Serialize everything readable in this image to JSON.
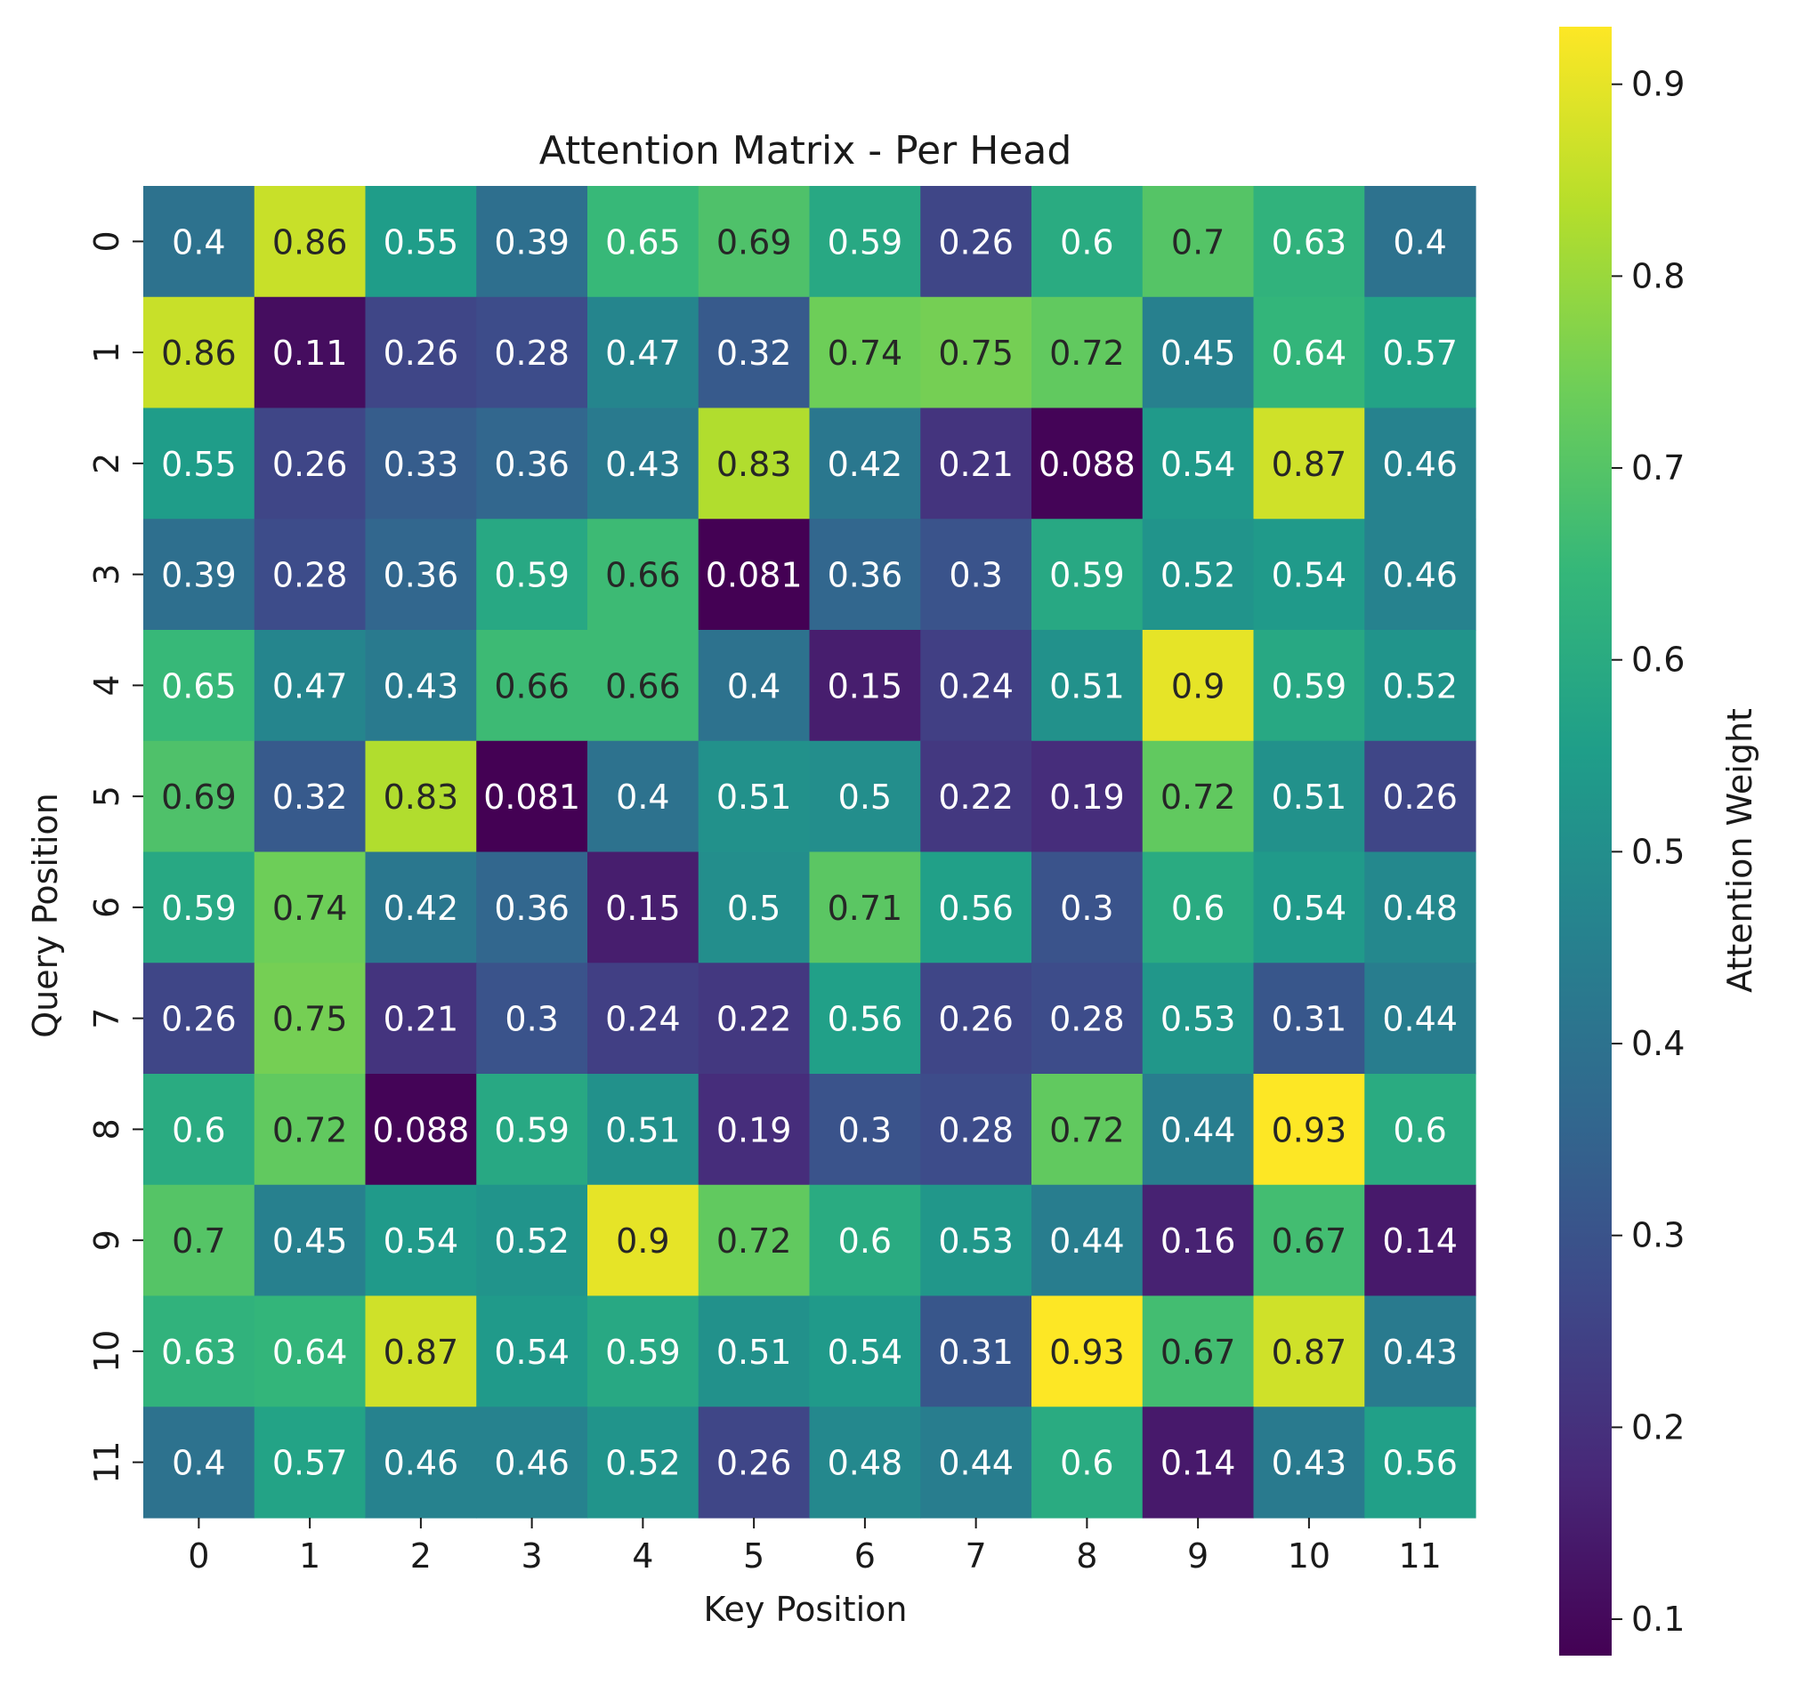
{
  "chart_data": {
    "type": "heatmap",
    "title": "Attention Matrix - Per Head",
    "xlabel": "Key Position",
    "ylabel": "Query Position",
    "x_categories": [
      "0",
      "1",
      "2",
      "3",
      "4",
      "5",
      "6",
      "7",
      "8",
      "9",
      "10",
      "11"
    ],
    "y_categories": [
      "0",
      "1",
      "2",
      "3",
      "4",
      "5",
      "6",
      "7",
      "8",
      "9",
      "10",
      "11"
    ],
    "values": [
      [
        0.4,
        0.86,
        0.55,
        0.39,
        0.65,
        0.69,
        0.59,
        0.26,
        0.6,
        0.7,
        0.63,
        0.4
      ],
      [
        0.86,
        0.11,
        0.26,
        0.28,
        0.47,
        0.32,
        0.74,
        0.75,
        0.72,
        0.45,
        0.64,
        0.57
      ],
      [
        0.55,
        0.26,
        0.33,
        0.36,
        0.43,
        0.83,
        0.42,
        0.21,
        0.088,
        0.54,
        0.87,
        0.46
      ],
      [
        0.39,
        0.28,
        0.36,
        0.59,
        0.66,
        0.081,
        0.36,
        0.3,
        0.59,
        0.52,
        0.54,
        0.46
      ],
      [
        0.65,
        0.47,
        0.43,
        0.66,
        0.66,
        0.4,
        0.15,
        0.24,
        0.51,
        0.9,
        0.59,
        0.52
      ],
      [
        0.69,
        0.32,
        0.83,
        0.081,
        0.4,
        0.51,
        0.5,
        0.22,
        0.19,
        0.72,
        0.51,
        0.26
      ],
      [
        0.59,
        0.74,
        0.42,
        0.36,
        0.15,
        0.5,
        0.71,
        0.56,
        0.3,
        0.6,
        0.54,
        0.48
      ],
      [
        0.26,
        0.75,
        0.21,
        0.3,
        0.24,
        0.22,
        0.56,
        0.26,
        0.28,
        0.53,
        0.31,
        0.44
      ],
      [
        0.6,
        0.72,
        0.088,
        0.59,
        0.51,
        0.19,
        0.3,
        0.28,
        0.72,
        0.44,
        0.93,
        0.6
      ],
      [
        0.7,
        0.45,
        0.54,
        0.52,
        0.9,
        0.72,
        0.6,
        0.53,
        0.44,
        0.16,
        0.67,
        0.14
      ],
      [
        0.63,
        0.64,
        0.87,
        0.54,
        0.59,
        0.51,
        0.54,
        0.31,
        0.93,
        0.67,
        0.87,
        0.43
      ],
      [
        0.4,
        0.57,
        0.46,
        0.46,
        0.52,
        0.26,
        0.48,
        0.44,
        0.6,
        0.14,
        0.43,
        0.56
      ]
    ],
    "value_labels": [
      [
        "0.4",
        "0.86",
        "0.55",
        "0.39",
        "0.65",
        "0.69",
        "0.59",
        "0.26",
        "0.6",
        "0.7",
        "0.63",
        "0.4"
      ],
      [
        "0.86",
        "0.11",
        "0.26",
        "0.28",
        "0.47",
        "0.32",
        "0.74",
        "0.75",
        "0.72",
        "0.45",
        "0.64",
        "0.57"
      ],
      [
        "0.55",
        "0.26",
        "0.33",
        "0.36",
        "0.43",
        "0.83",
        "0.42",
        "0.21",
        "0.088",
        "0.54",
        "0.87",
        "0.46"
      ],
      [
        "0.39",
        "0.28",
        "0.36",
        "0.59",
        "0.66",
        "0.081",
        "0.36",
        "0.3",
        "0.59",
        "0.52",
        "0.54",
        "0.46"
      ],
      [
        "0.65",
        "0.47",
        "0.43",
        "0.66",
        "0.66",
        "0.4",
        "0.15",
        "0.24",
        "0.51",
        "0.9",
        "0.59",
        "0.52"
      ],
      [
        "0.69",
        "0.32",
        "0.83",
        "0.081",
        "0.4",
        "0.51",
        "0.5",
        "0.22",
        "0.19",
        "0.72",
        "0.51",
        "0.26"
      ],
      [
        "0.59",
        "0.74",
        "0.42",
        "0.36",
        "0.15",
        "0.5",
        "0.71",
        "0.56",
        "0.3",
        "0.6",
        "0.54",
        "0.48"
      ],
      [
        "0.26",
        "0.75",
        "0.21",
        "0.3",
        "0.24",
        "0.22",
        "0.56",
        "0.26",
        "0.28",
        "0.53",
        "0.31",
        "0.44"
      ],
      [
        "0.6",
        "0.72",
        "0.088",
        "0.59",
        "0.51",
        "0.19",
        "0.3",
        "0.28",
        "0.72",
        "0.44",
        "0.93",
        "0.6"
      ],
      [
        "0.7",
        "0.45",
        "0.54",
        "0.52",
        "0.9",
        "0.72",
        "0.6",
        "0.53",
        "0.44",
        "0.16",
        "0.67",
        "0.14"
      ],
      [
        "0.63",
        "0.64",
        "0.87",
        "0.54",
        "0.59",
        "0.51",
        "0.54",
        "0.31",
        "0.93",
        "0.67",
        "0.87",
        "0.43"
      ],
      [
        "0.4",
        "0.57",
        "0.46",
        "0.46",
        "0.52",
        "0.26",
        "0.48",
        "0.44",
        "0.6",
        "0.14",
        "0.43",
        "0.56"
      ]
    ],
    "colormap": "viridis",
    "colormap_stops": [
      "#440154",
      "#482878",
      "#3e4989",
      "#31688e",
      "#26828e",
      "#1f9e89",
      "#35b779",
      "#6ece58",
      "#b5de2b",
      "#fde725"
    ],
    "color_range": [
      0.081,
      0.93
    ],
    "colorbar": {
      "label": "Attention Weight",
      "ticks": [
        0.1,
        0.2,
        0.3,
        0.4,
        0.5,
        0.6,
        0.7,
        0.8,
        0.9
      ],
      "tick_labels": [
        "0.1",
        "0.2",
        "0.3",
        "0.4",
        "0.5",
        "0.6",
        "0.7",
        "0.8",
        "0.9"
      ],
      "placement": "right"
    },
    "annotations": true,
    "grid": false
  }
}
